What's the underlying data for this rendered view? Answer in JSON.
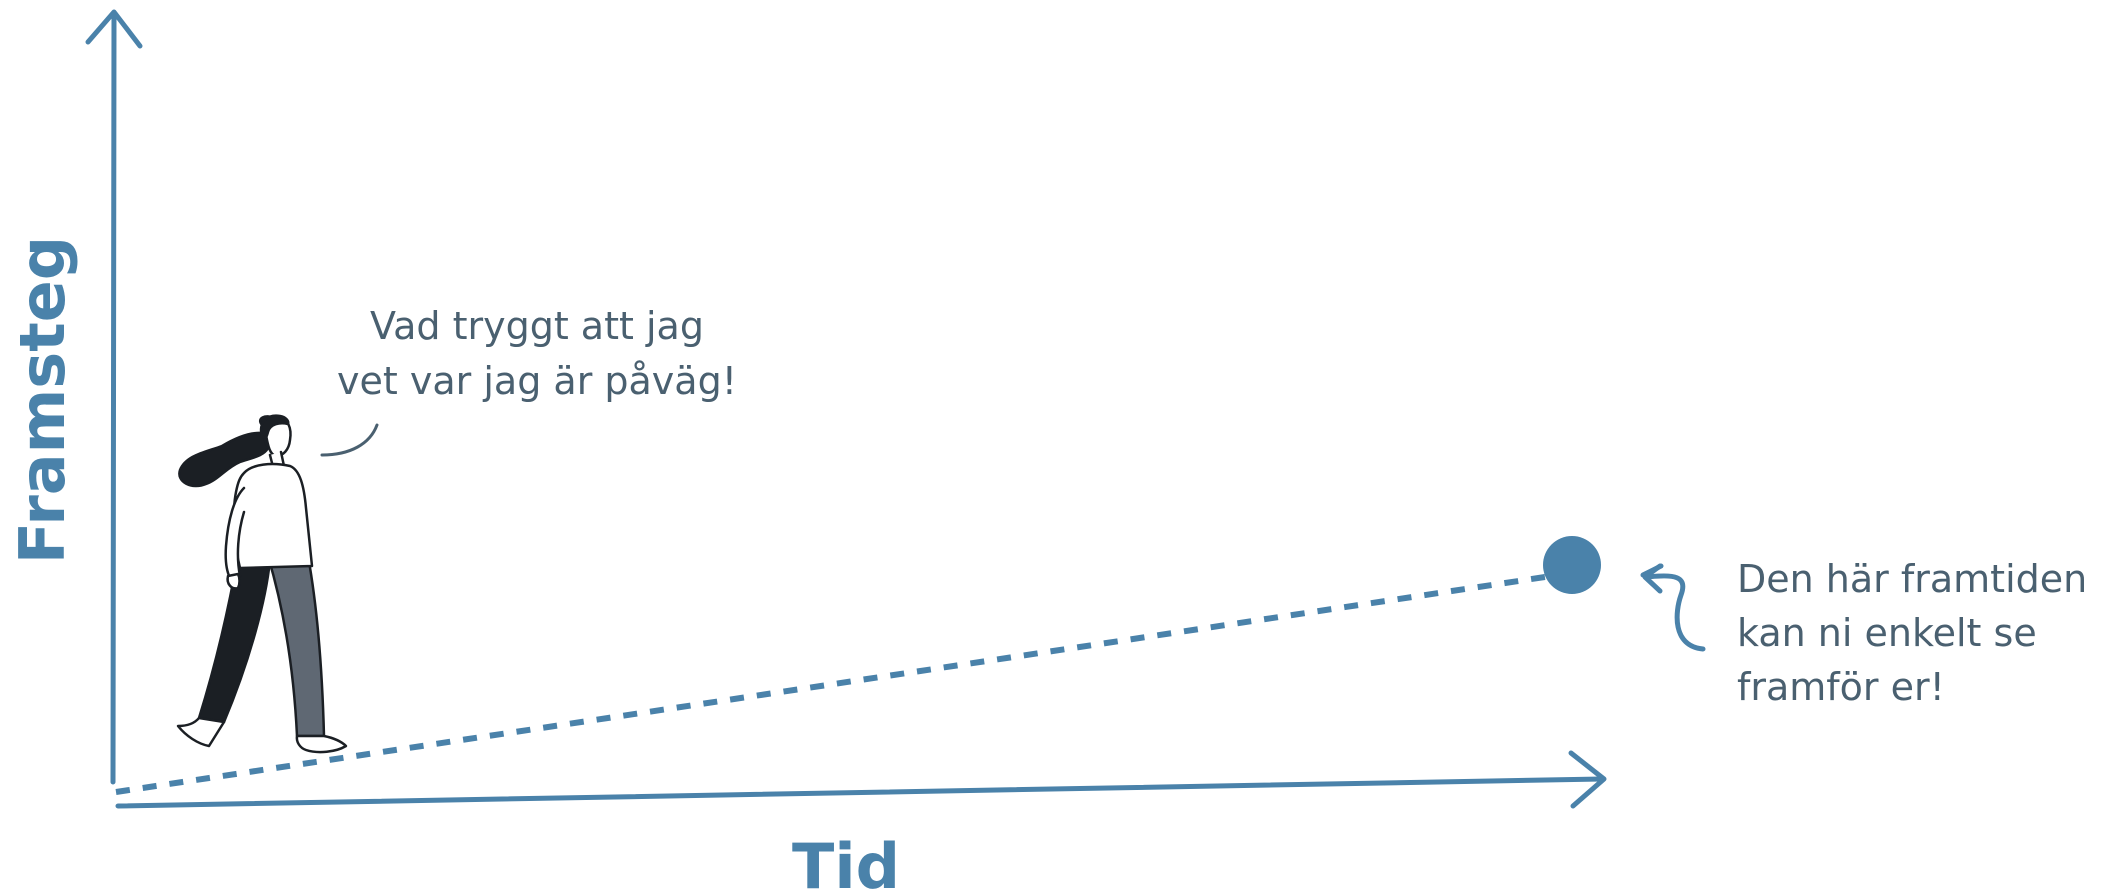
{
  "colors": {
    "accent": "#4a82aa",
    "text": "#4a6070",
    "figure_dark": "#1b1f24",
    "figure_trousers": "#5f6873"
  },
  "axes": {
    "y_label": "Framsteg",
    "x_label": "Tid"
  },
  "speech_bubble": {
    "lines": [
      "Vad tryggt att jag",
      "vet var jag är påväg!"
    ]
  },
  "goal_annotation": {
    "lines": [
      "Den här framtiden",
      "kan ni enkelt se",
      "framför er!"
    ]
  },
  "icons": {
    "walker": "walking-woman-icon",
    "goal": "goal-dot",
    "pointer": "curved-arrow-icon"
  }
}
